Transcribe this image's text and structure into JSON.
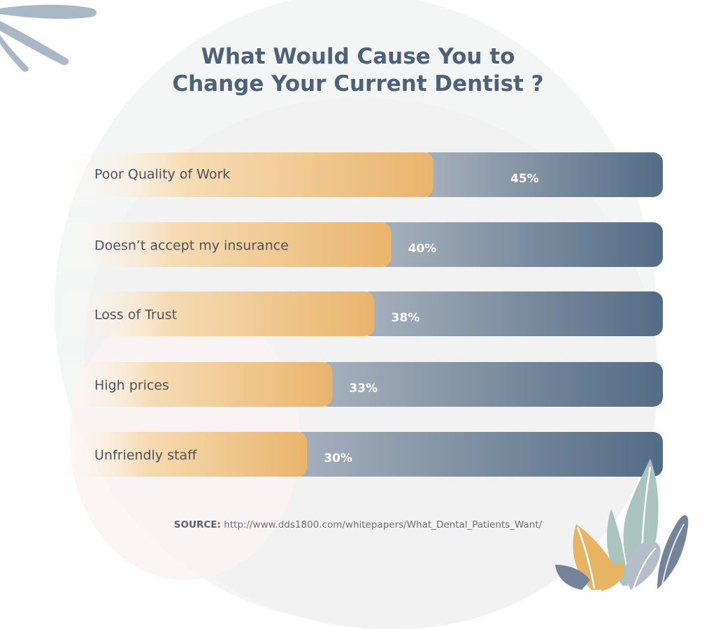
{
  "title_line1": "What Would Cause You to",
  "title_line2": "Change Your Current Dentist ?",
  "chart_data": {
    "type": "bar",
    "orientation": "horizontal",
    "categories": [
      "Poor Quality of Work",
      "Doesn’t accept my insurance",
      "Loss of Trust",
      "High prices",
      "Unfriendly staff"
    ],
    "values": [
      45,
      40,
      38,
      33,
      30
    ],
    "value_labels": [
      "45%",
      "40%",
      "38%",
      "33%",
      "30%"
    ],
    "unit": "%",
    "colors": {
      "fill": "#e9b46c",
      "track": "#536c85",
      "track_light": "#a3aebb"
    }
  },
  "source": {
    "label": "SOURCE:",
    "url": "http://www.dds1800.com/whitepapers/What_Dental_Patients_Want/"
  }
}
